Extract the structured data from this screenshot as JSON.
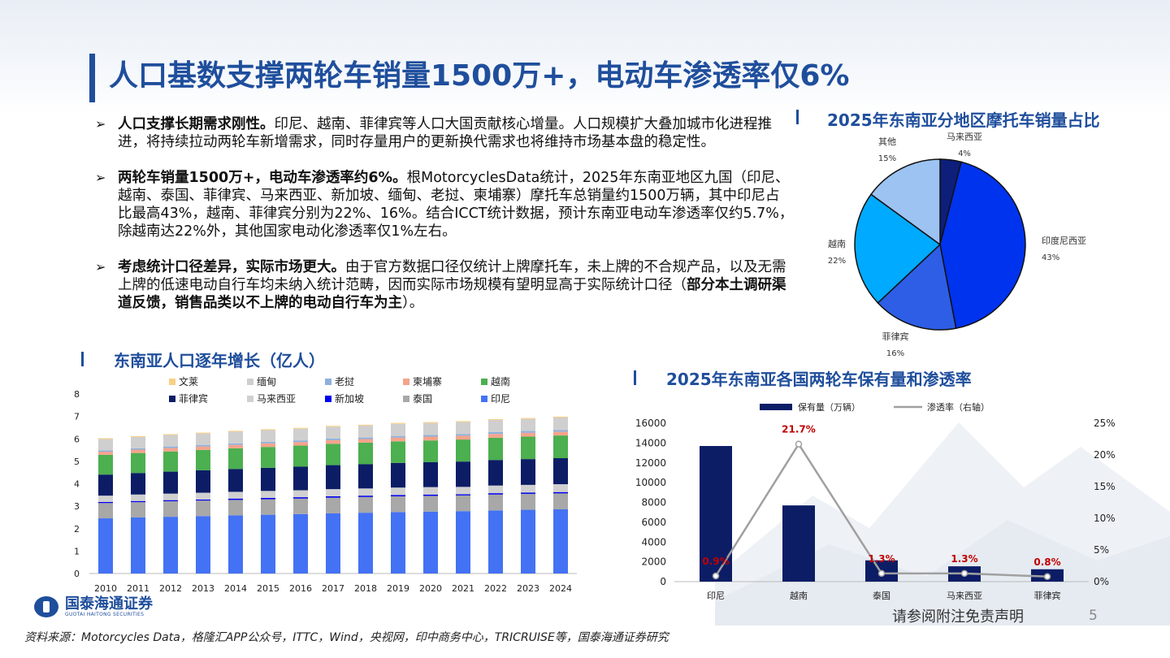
{
  "title": "人口基数支撑两轮车销量1500万+，电动车渗透率仅6%",
  "bullets": [
    {
      "bold": "人口支撑长期需求刚性。",
      "text": "印尼、越南、菲律宾等人口大国贡献核心增量。人口规模扩大叠加城市化进程推进，将持续拉动两轮车新增需求，同时存量用户的更新换代需求也将维持市场基本盘的稳定性。"
    },
    {
      "bold": "两轮车销量1500万+，电动车渗透率约6%。",
      "text": "根MotorcyclesData统计，2025年东南亚地区九国（印尼、越南、泰国、菲律宾、马来西亚、新加坡、缅甸、老挝、柬埔寨）摩托车总销量约1500万辆，其中印尼占比最高43%，越南、菲律宾分别为22%、16%。结合ICCT统计数据，预计东南亚电动车渗透率仅约5.7%，除越南达22%外，其他国家电动化渗透率仅1%左右。"
    },
    {
      "bold": "考虑统计口径差异，实际市场更大。",
      "text": "由于官方数据口径仅统计上牌摩托车，未上牌的不合规产品，以及无需上牌的低速电动自行车均未纳入统计范畴，因而实际市场规模有望明显高于实际统计口径（",
      "bold2": "部分本土调研渠道反馈，销售品类以不上牌的电动自行车为主",
      "tail": "）。"
    }
  ],
  "footer": {
    "source": "资料来源：Motorcycles Data，格隆汇APP公众号，ITTC，Wind，央视网，印中商务中心，TRICRUISE等，国泰海通证券研究",
    "disclaimer": "请参阅附注免责声明",
    "page": "5",
    "logo_cn": "国泰海通证券",
    "logo_en": "GUOTAI HAITONG SECURITIES"
  },
  "colors": {
    "brand": "#1f4e9c"
  },
  "chart_data": [
    {
      "type": "pie",
      "title": "2025年东南亚分地区摩托车销量占比",
      "slices": [
        {
          "name": "马来西亚",
          "value": 4,
          "label": "4%",
          "color": "#0d1f7a"
        },
        {
          "name": "印度尼西亚",
          "value": 43,
          "label": "43%",
          "color": "#0033ee"
        },
        {
          "name": "菲律宾",
          "value": 16,
          "label": "16%",
          "color": "#2e5ee6"
        },
        {
          "name": "越南",
          "value": 22,
          "label": "22%",
          "color": "#00aaff"
        },
        {
          "name": "其他",
          "value": 15,
          "label": "15%",
          "color": "#9cc3f2"
        }
      ]
    },
    {
      "type": "bar",
      "stacked": true,
      "title": "东南亚人口逐年增长（亿人）",
      "categories": [
        "2010",
        "2011",
        "2012",
        "2013",
        "2014",
        "2015",
        "2016",
        "2017",
        "2018",
        "2019",
        "2020",
        "2021",
        "2022",
        "2023",
        "2024"
      ],
      "ylim": [
        0,
        8
      ],
      "yticks": [
        "0",
        "1",
        "2",
        "3",
        "4",
        "5",
        "6",
        "7",
        "8"
      ],
      "legend_position": "top",
      "series": [
        {
          "name": "印尼",
          "color": "#4472f4",
          "values": [
            2.46,
            2.5,
            2.53,
            2.56,
            2.59,
            2.62,
            2.65,
            2.68,
            2.71,
            2.74,
            2.76,
            2.78,
            2.81,
            2.84,
            2.86
          ]
        },
        {
          "name": "泰国",
          "color": "#a8a8a8",
          "values": [
            0.68,
            0.68,
            0.69,
            0.69,
            0.69,
            0.69,
            0.69,
            0.7,
            0.7,
            0.7,
            0.7,
            0.7,
            0.71,
            0.71,
            0.71
          ]
        },
        {
          "name": "新加坡",
          "color": "#0000ee",
          "values": [
            0.05,
            0.05,
            0.05,
            0.05,
            0.06,
            0.06,
            0.06,
            0.06,
            0.06,
            0.06,
            0.06,
            0.05,
            0.06,
            0.06,
            0.06
          ]
        },
        {
          "name": "马来西亚",
          "color": "#d0d0d0",
          "values": [
            0.28,
            0.29,
            0.29,
            0.3,
            0.3,
            0.31,
            0.31,
            0.32,
            0.32,
            0.33,
            0.33,
            0.33,
            0.34,
            0.34,
            0.35
          ]
        },
        {
          "name": "菲律宾",
          "color": "#0c1d66",
          "values": [
            0.94,
            0.96,
            0.98,
            1.0,
            1.02,
            1.03,
            1.05,
            1.07,
            1.08,
            1.1,
            1.11,
            1.13,
            1.14,
            1.15,
            1.16
          ]
        },
        {
          "name": "越南",
          "color": "#4caf50",
          "values": [
            0.88,
            0.89,
            0.9,
            0.91,
            0.92,
            0.93,
            0.94,
            0.95,
            0.96,
            0.96,
            0.97,
            0.98,
            0.99,
            1.0,
            1.01
          ]
        },
        {
          "name": "柬埔寨",
          "color": "#f4a48c",
          "values": [
            0.14,
            0.15,
            0.15,
            0.15,
            0.15,
            0.16,
            0.16,
            0.16,
            0.16,
            0.17,
            0.17,
            0.17,
            0.17,
            0.17,
            0.17
          ]
        },
        {
          "name": "老挝",
          "color": "#8fb0dd",
          "values": [
            0.06,
            0.06,
            0.07,
            0.07,
            0.07,
            0.07,
            0.07,
            0.07,
            0.07,
            0.07,
            0.07,
            0.07,
            0.08,
            0.08,
            0.08
          ]
        },
        {
          "name": "缅甸",
          "color": "#cfcfcf",
          "values": [
            0.5,
            0.5,
            0.51,
            0.51,
            0.52,
            0.52,
            0.52,
            0.53,
            0.53,
            0.54,
            0.54,
            0.54,
            0.54,
            0.54,
            0.55
          ]
        },
        {
          "name": "文莱",
          "color": "#f8cf85",
          "values": [
            0.04,
            0.04,
            0.04,
            0.04,
            0.04,
            0.04,
            0.04,
            0.04,
            0.04,
            0.04,
            0.04,
            0.04,
            0.04,
            0.04,
            0.04
          ]
        }
      ]
    },
    {
      "type": "bar",
      "title": "2025年东南亚各国两轮车保有量和渗透率",
      "categories": [
        "印尼",
        "越南",
        "泰国",
        "马来西亚",
        "菲律宾"
      ],
      "bar_series": {
        "name": "保有量（万辆）",
        "color": "#0c1d66",
        "values": [
          13700,
          7700,
          2150,
          1550,
          1250
        ]
      },
      "line_series": {
        "name": "渗透率（右轴）",
        "color": "#a0a0a0",
        "values": [
          0.009,
          0.217,
          0.013,
          0.013,
          0.008
        ],
        "labels": [
          "0.9%",
          "21.7%",
          "1.3%",
          "1.3%",
          "0.8%"
        ],
        "label_color": "#c00000"
      },
      "ylim_left": [
        0,
        16000
      ],
      "yticks_left": [
        "0",
        "2000",
        "4000",
        "6000",
        "8000",
        "10000",
        "12000",
        "14000",
        "16000"
      ],
      "ylim_right": [
        0,
        0.25
      ],
      "yticks_right": [
        "0%",
        "5%",
        "10%",
        "15%",
        "20%",
        "25%"
      ],
      "legend_position": "top"
    }
  ]
}
